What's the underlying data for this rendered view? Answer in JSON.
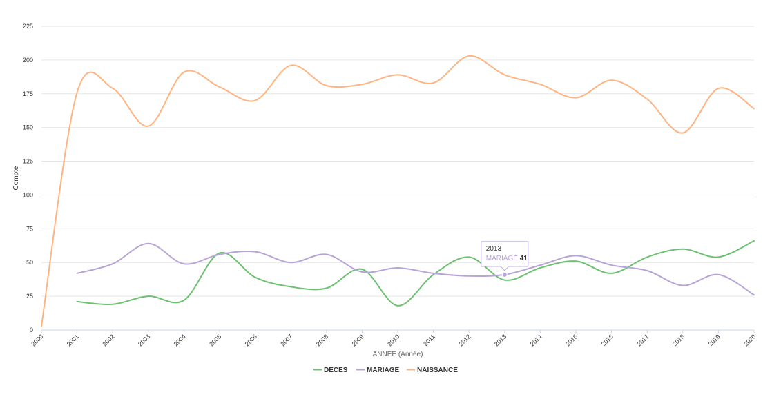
{
  "chart_data": {
    "type": "line",
    "title": "",
    "xlabel": "ANNEE (Année)",
    "ylabel": "Compte",
    "ylim": [
      0,
      225
    ],
    "yticks": [
      0,
      25,
      50,
      75,
      100,
      125,
      150,
      175,
      200,
      225
    ],
    "x": [
      "2000",
      "2001",
      "2002",
      "2003",
      "2004",
      "2005",
      "2006",
      "2007",
      "2008",
      "2009",
      "2010",
      "2011",
      "2012",
      "2013",
      "2014",
      "2015",
      "2016",
      "2017",
      "2018",
      "2019",
      "2020"
    ],
    "grid": true,
    "legend_position": "bottom-center",
    "series": [
      {
        "name": "DECES",
        "color": "#6cc070",
        "values": [
          null,
          21,
          19,
          25,
          22,
          57,
          39,
          32,
          31,
          45,
          18,
          41,
          54,
          37,
          46,
          51,
          42,
          54,
          60,
          54,
          66
        ]
      },
      {
        "name": "MARIAGE",
        "color": "#b7a3d6",
        "values": [
          null,
          42,
          49,
          64,
          49,
          56,
          58,
          50,
          56,
          43,
          46,
          42,
          40,
          41,
          48,
          55,
          48,
          44,
          33,
          41,
          26
        ]
      },
      {
        "name": "NAISSANCE",
        "color": "#ffb380",
        "values": [
          3,
          176,
          179,
          151,
          191,
          180,
          170,
          196,
          181,
          182,
          189,
          183,
          203,
          189,
          182,
          172,
          185,
          171,
          146,
          179,
          164
        ]
      }
    ],
    "tooltip": {
      "category": "2013",
      "series": "MARIAGE",
      "value": "41",
      "color": "#b7a3d6"
    }
  }
}
